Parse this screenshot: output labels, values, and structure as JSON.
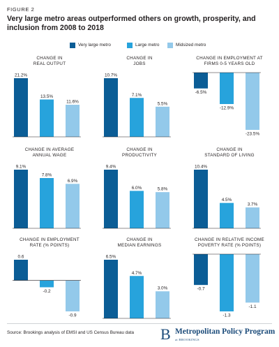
{
  "figure_label": "FIGURE 2",
  "title": "Very large metro areas outperformed others on growth, prosperity, and inclusion from 2008 to 2018",
  "legend": [
    {
      "name": "Very large metro",
      "color": "#0b5d96"
    },
    {
      "name": "Large metro",
      "color": "#27a3dc"
    },
    {
      "name": "Midsized metro",
      "color": "#93c9ea"
    }
  ],
  "chart_data": [
    {
      "type": "bar",
      "title": "CHANGE IN\nREAL OUTPUT",
      "categories": [
        "Very large metro",
        "Large metro",
        "Midsized metro"
      ],
      "values": [
        21.2,
        13.5,
        11.6
      ],
      "labels": [
        "21.2%",
        "13.5%",
        "11.6%"
      ]
    },
    {
      "type": "bar",
      "title": "CHANGE IN\nJOBS",
      "categories": [
        "Very large metro",
        "Large metro",
        "Midsized metro"
      ],
      "values": [
        10.7,
        7.1,
        5.5
      ],
      "labels": [
        "10.7%",
        "7.1%",
        "5.5%"
      ]
    },
    {
      "type": "bar",
      "title": "CHANGE IN EMPLOYMENT AT\nFIRMS 0-5 YEARS OLD",
      "categories": [
        "Very large metro",
        "Large metro",
        "Midsized metro"
      ],
      "values": [
        -6.5,
        -12.9,
        -23.5
      ],
      "labels": [
        "-6.5%",
        "-12.9%",
        "-23.5%"
      ]
    },
    {
      "type": "bar",
      "title": "CHANGE IN AVERAGE\nANNUAL WAGE",
      "categories": [
        "Very large metro",
        "Large metro",
        "Midsized metro"
      ],
      "values": [
        9.1,
        7.8,
        6.9
      ],
      "labels": [
        "9.1%",
        "7.8%",
        "6.9%"
      ]
    },
    {
      "type": "bar",
      "title": "CHANGE IN\nPRODUCTIVITY",
      "categories": [
        "Very large metro",
        "Large metro",
        "Midsized metro"
      ],
      "values": [
        9.4,
        6.0,
        5.8
      ],
      "labels": [
        "9.4%",
        "6.0%",
        "5.8%"
      ]
    },
    {
      "type": "bar",
      "title": "CHANGE IN\nSTANDARD OF LIVING",
      "categories": [
        "Very large metro",
        "Large metro",
        "Midsized metro"
      ],
      "values": [
        10.4,
        4.5,
        3.7
      ],
      "labels": [
        "10.4%",
        "4.5%",
        "3.7%"
      ]
    },
    {
      "type": "bar",
      "title": "CHANGE IN EMPLOYMENT\nRATE (% POINTS)",
      "categories": [
        "Very large metro",
        "Large metro",
        "Midsized metro"
      ],
      "values": [
        0.6,
        -0.2,
        -0.9
      ],
      "labels": [
        "0.6",
        "-0.2",
        "-0.9"
      ]
    },
    {
      "type": "bar",
      "title": "CHANGE IN\nMEDIAN EARNINGS",
      "categories": [
        "Very large metro",
        "Large metro",
        "Midsized metro"
      ],
      "values": [
        6.5,
        4.7,
        3.0
      ],
      "labels": [
        "6.5%",
        "4.7%",
        "3.0%"
      ]
    },
    {
      "type": "bar",
      "title": "CHANGE IN RELATIVE INCOME\nPOVERTY RATE (% POINTS)",
      "categories": [
        "Very large metro",
        "Large metro",
        "Midsized metro"
      ],
      "values": [
        -0.7,
        -1.3,
        -1.1
      ],
      "labels": [
        "-0.7",
        "-1.3",
        "-1.1"
      ]
    }
  ],
  "source": "Source: Brookings analysis of EMSI and US Census Bureau data",
  "logo": {
    "mark": "B",
    "name": "Metropolitan Policy Program",
    "sub": "at BROOKINGS"
  }
}
